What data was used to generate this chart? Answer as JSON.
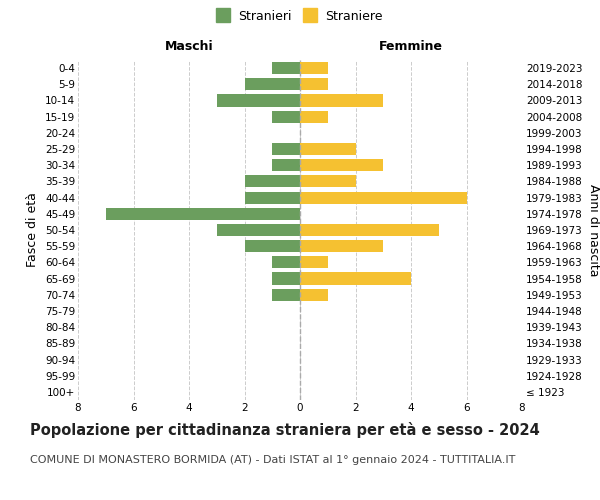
{
  "age_groups": [
    "100+",
    "95-99",
    "90-94",
    "85-89",
    "80-84",
    "75-79",
    "70-74",
    "65-69",
    "60-64",
    "55-59",
    "50-54",
    "45-49",
    "40-44",
    "35-39",
    "30-34",
    "25-29",
    "20-24",
    "15-19",
    "10-14",
    "5-9",
    "0-4"
  ],
  "birth_years": [
    "≤ 1923",
    "1924-1928",
    "1929-1933",
    "1934-1938",
    "1939-1943",
    "1944-1948",
    "1949-1953",
    "1954-1958",
    "1959-1963",
    "1964-1968",
    "1969-1973",
    "1974-1978",
    "1979-1983",
    "1984-1988",
    "1989-1993",
    "1994-1998",
    "1999-2003",
    "2004-2008",
    "2009-2013",
    "2014-2018",
    "2019-2023"
  ],
  "males": [
    0,
    0,
    0,
    0,
    0,
    0,
    1,
    1,
    1,
    2,
    3,
    7,
    2,
    2,
    1,
    1,
    0,
    1,
    3,
    2,
    1
  ],
  "females": [
    0,
    0,
    0,
    0,
    0,
    0,
    1,
    4,
    1,
    3,
    5,
    0,
    6,
    2,
    3,
    2,
    0,
    1,
    3,
    1,
    1
  ],
  "male_color": "#6b9e5e",
  "female_color": "#f5c131",
  "bar_height": 0.75,
  "xlim": 8,
  "title": "Popolazione per cittadinanza straniera per età e sesso - 2024",
  "subtitle": "COMUNE DI MONASTERO BORMIDA (AT) - Dati ISTAT al 1° gennaio 2024 - TUTTITALIA.IT",
  "left_label": "Maschi",
  "right_label": "Femmine",
  "y_left_label": "Fasce di età",
  "y_right_label": "Anni di nascita",
  "legend_male": "Stranieri",
  "legend_female": "Straniere",
  "grid_color": "#cccccc",
  "bg_color": "#ffffff",
  "title_fontsize": 10.5,
  "subtitle_fontsize": 8,
  "tick_fontsize": 7.5,
  "label_fontsize": 9,
  "legend_fontsize": 9
}
